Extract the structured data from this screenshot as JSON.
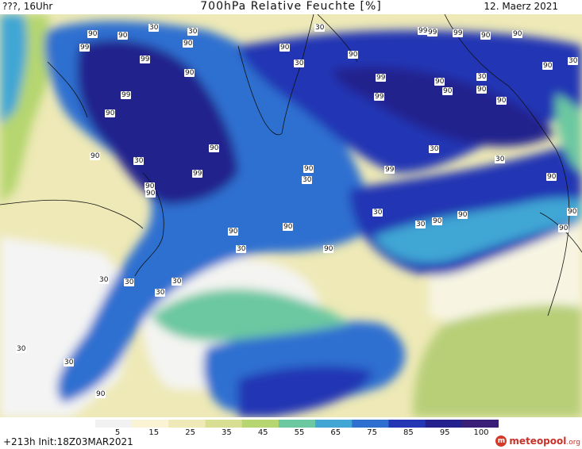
{
  "header": {
    "left": "???, 16Uhr",
    "title": "700hPa Relative Feuchte [%]",
    "date": "12. Maerz 2021"
  },
  "legend": {
    "ticks": [
      "5",
      "15",
      "25",
      "35",
      "45",
      "55",
      "65",
      "75",
      "85",
      "95",
      "100"
    ],
    "colors": [
      "#f2f2f2",
      "#faf4d4",
      "#eee9b6",
      "#d9df92",
      "#b5d670",
      "#6cc8a0",
      "#41a6d4",
      "#2f6fd0",
      "#2436b4",
      "#24208d",
      "#391f78"
    ]
  },
  "contour_labels": [
    "90",
    "90",
    "99",
    "99",
    "90",
    "30",
    "30",
    "90",
    "99",
    "90",
    "30",
    "90",
    "90",
    "90",
    "90",
    "99",
    "90",
    "99",
    "90",
    "99",
    "99",
    "30",
    "99",
    "99",
    "99",
    "90",
    "90",
    "90",
    "30",
    "30",
    "90",
    "90",
    "90",
    "30",
    "90",
    "90",
    "30",
    "30",
    "90",
    "90",
    "90",
    "90",
    "90",
    "30",
    "30",
    "90",
    "90",
    "90",
    "30",
    "30",
    "30",
    "30",
    "30",
    "30",
    "30",
    "30",
    "90"
  ],
  "footer": {
    "run": "+213h  Init:18Z03MAR2021"
  },
  "logo": {
    "name": "meteopool",
    "tld": ".org"
  }
}
